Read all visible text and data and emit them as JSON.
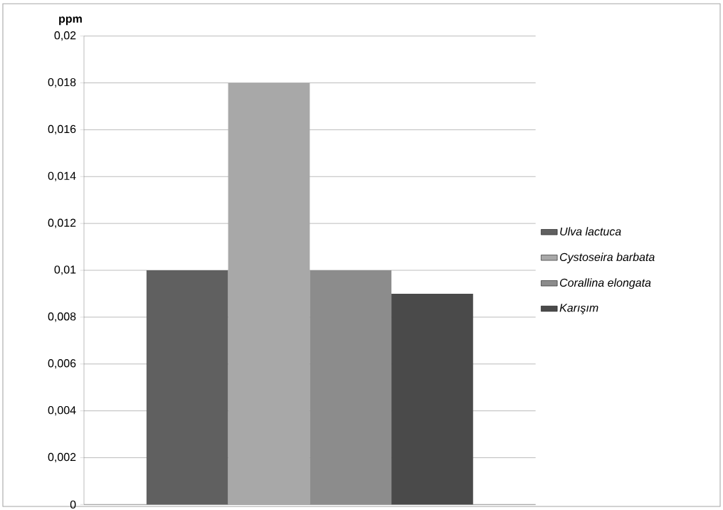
{
  "chart_data": {
    "type": "bar",
    "ylabel": "ppm",
    "categories": [
      null
    ],
    "series": [
      {
        "name": "Ulva lactuca",
        "color": "#606060",
        "values": [
          0.01
        ]
      },
      {
        "name": "Cystoseira barbata",
        "color": "#a8a8a8",
        "values": [
          0.018
        ]
      },
      {
        "name": "Corallina elongata",
        "color": "#8c8c8c",
        "values": [
          0.01
        ]
      },
      {
        "name": "Karışım",
        "color": "#4a4a4a",
        "values": [
          0.009
        ]
      }
    ],
    "ylim": [
      0,
      0.02
    ],
    "yticks": [
      {
        "value": 0,
        "label": "0"
      },
      {
        "value": 0.002,
        "label": "0,002"
      },
      {
        "value": 0.004,
        "label": "0,004"
      },
      {
        "value": 0.006,
        "label": "0,006"
      },
      {
        "value": 0.008,
        "label": "0,008"
      },
      {
        "value": 0.01,
        "label": "0,01"
      },
      {
        "value": 0.012,
        "label": "0,012"
      },
      {
        "value": 0.014,
        "label": "0,014"
      },
      {
        "value": 0.016,
        "label": "0,016"
      },
      {
        "value": 0.018,
        "label": "0,018"
      },
      {
        "value": 0.02,
        "label": "0,02"
      }
    ],
    "grid": "y",
    "legend": "right"
  }
}
